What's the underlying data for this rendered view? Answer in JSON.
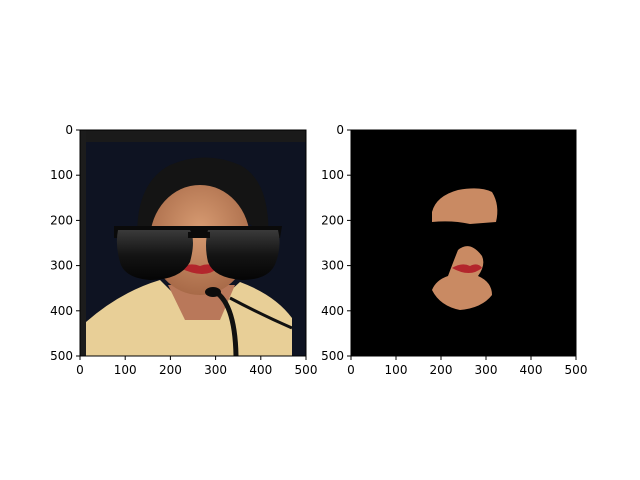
{
  "chart_data": [
    {
      "type": "image",
      "title": "",
      "xlabel": "",
      "ylabel": "",
      "xlim": [
        0,
        500
      ],
      "ylim": [
        500,
        0
      ],
      "xticks": [
        "0",
        "100",
        "200",
        "300",
        "400",
        "500"
      ],
      "yticks": [
        "0",
        "100",
        "200",
        "300",
        "400",
        "500"
      ],
      "content": "photo-with-sunglasses",
      "colors": {
        "background": "#0e1322",
        "skin": "#c98a63",
        "hair": "#141414",
        "shirt": "#e8cf97",
        "lips": "#b3262c"
      }
    },
    {
      "type": "image",
      "title": "",
      "xlabel": "",
      "ylabel": "",
      "xlim": [
        0,
        500
      ],
      "ylim": [
        500,
        0
      ],
      "xticks": [
        "0",
        "100",
        "200",
        "300",
        "400",
        "500"
      ],
      "yticks": [
        "0",
        "100",
        "200",
        "300",
        "400",
        "500"
      ],
      "content": "masked-face",
      "colors": {
        "background": "#000000",
        "skin": "#c98a63",
        "lips": "#b3262c"
      }
    }
  ]
}
